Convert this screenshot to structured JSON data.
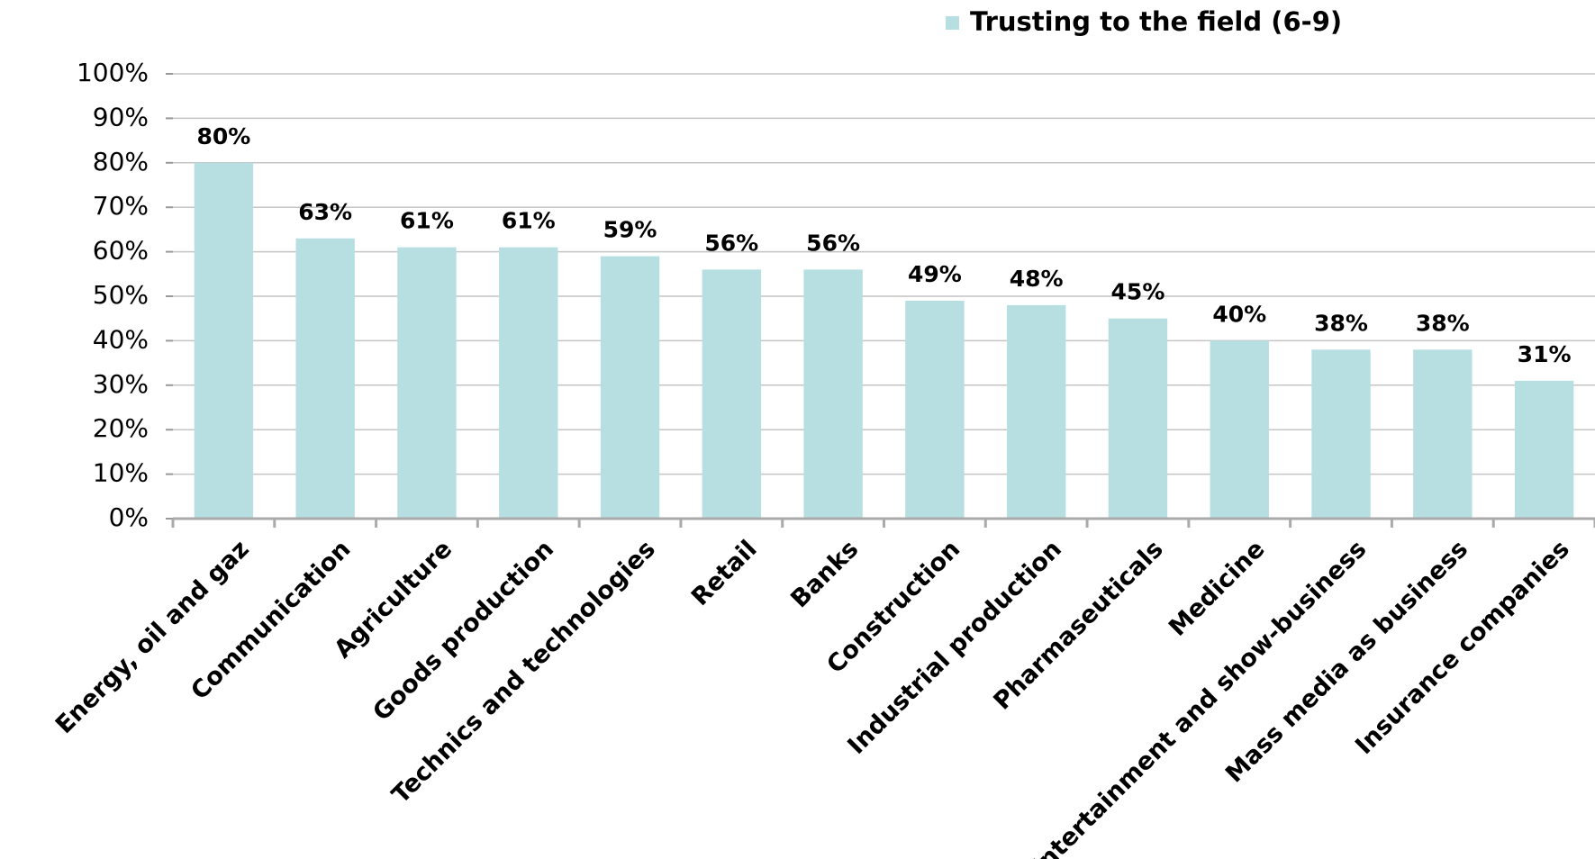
{
  "chart_data": {
    "type": "bar",
    "categories": [
      "Energy,  oil and gaz",
      "Communication",
      "Agriculture",
      "Goods production",
      "Technics and technologies",
      "Retail",
      "Banks",
      "Construction",
      "Industrial production",
      "Pharmaseuticals",
      "Medicine",
      "Entertainment and show-business",
      "Mass media as business",
      "Insurance companies"
    ],
    "series": [
      {
        "name": "Trusting to the field (6-9)",
        "color": "#b7dfe2",
        "values": [
          80,
          63,
          61,
          61,
          59,
          56,
          56,
          49,
          48,
          45,
          40,
          38,
          38,
          31
        ],
        "value_labels": [
          "80%",
          "63%",
          "61%",
          "61%",
          "59%",
          "56%",
          "56%",
          "49%",
          "48%",
          "45%",
          "40%",
          "38%",
          "38%",
          "31%"
        ]
      }
    ],
    "ylim": [
      0,
      100
    ],
    "yticks": [
      {
        "value": 0,
        "label": "0%"
      },
      {
        "value": 10,
        "label": "10%"
      },
      {
        "value": 20,
        "label": "20%"
      },
      {
        "value": 30,
        "label": "30%"
      },
      {
        "value": 40,
        "label": "40%"
      },
      {
        "value": 50,
        "label": "50%"
      },
      {
        "value": 60,
        "label": "60%"
      },
      {
        "value": 70,
        "label": "70%"
      },
      {
        "value": 80,
        "label": "80%"
      },
      {
        "value": 90,
        "label": "90%"
      },
      {
        "value": 100,
        "label": "100%"
      }
    ],
    "grid": true,
    "legend": "top"
  }
}
